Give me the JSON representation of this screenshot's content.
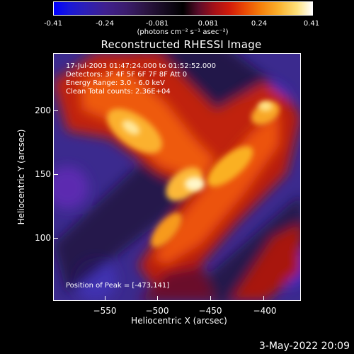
{
  "colorbar": {
    "tick_labels": [
      "-0.41",
      "-0.24",
      "-0.081",
      "0.081",
      "0.24",
      "0.41"
    ],
    "units": "(photons cm⁻² s⁻¹ asec⁻²)"
  },
  "title": "Reconstructed RHESSI Image",
  "info": {
    "line1": "17-Jul-2003 01:47:24.000 to 01:52:52.000",
    "line2": "Detectors: 3F 4F 5F 6F 7F 8F  Att 0",
    "line3": "Energy Range: 3.0 - 6.0 keV",
    "line4": "Clean     Total counts: 2.36E+04"
  },
  "peak": "Position of Peak = [-473,141]",
  "axes": {
    "xlabel": "Heliocentric X (arcsec)",
    "ylabel": "Heliocentric Y (arcsec)",
    "xticks": [
      "−550",
      "−500",
      "−450",
      "−400"
    ],
    "yticks": [
      "200",
      "150",
      "100"
    ]
  },
  "date": "3-May-2022 20:09"
}
